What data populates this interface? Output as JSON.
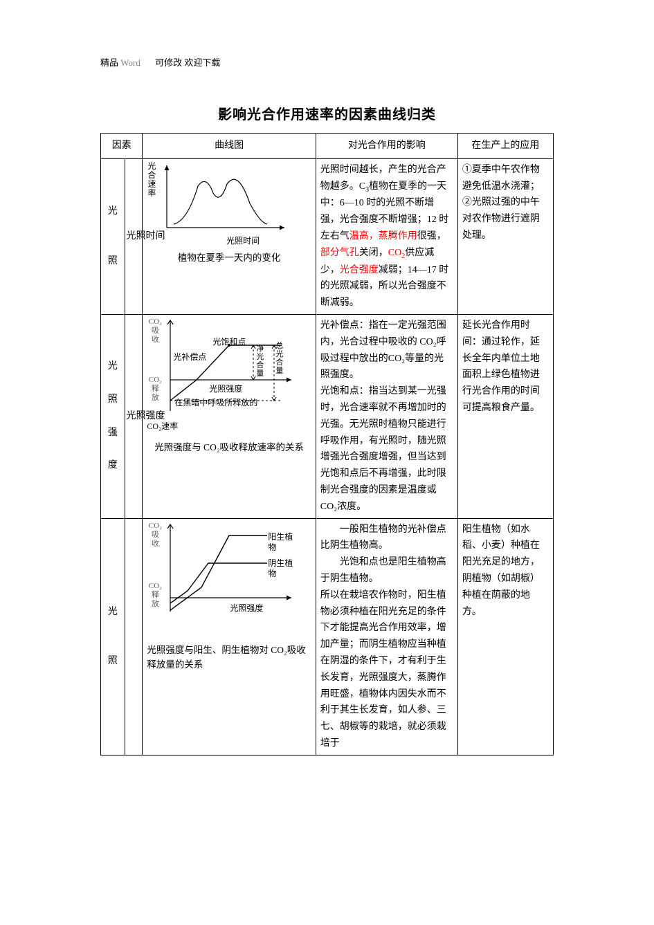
{
  "header": {
    "jingpin": "精品",
    "word": "Word",
    "rest": "可修改  欢迎下载"
  },
  "title": "影响光合作用速率的因素曲线归类",
  "columns": {
    "c1": "因素",
    "c2": "曲线图",
    "c3": "对光合作用的影响",
    "c4": "在生产上的应用"
  },
  "rows": [
    {
      "factor_main": "光\n\n\n照",
      "factor_sub": "光照时间",
      "chart": {
        "type": "line-peak",
        "y_label": "光合速率",
        "x_label": "光照时间",
        "caption": "植物在夏季一天内的变化",
        "stroke": "#000000",
        "points": [
          [
            20,
            80
          ],
          [
            35,
            55
          ],
          [
            55,
            20
          ],
          [
            70,
            35
          ],
          [
            85,
            25
          ],
          [
            100,
            50
          ],
          [
            120,
            80
          ]
        ],
        "axis_color": "#000000"
      },
      "effect_parts": [
        {
          "t": "光照时间越长，产生的光合产物越多。C",
          "red": false
        },
        {
          "t": "3",
          "red": false,
          "sub": true
        },
        {
          "t": "植物在夏季的一天中：6—10 时的光照不断增强，光合强度不断增强；12 时左右气",
          "red": false
        },
        {
          "t": "温高，蒸腾作用",
          "red": true
        },
        {
          "t": "很强，",
          "red": false
        },
        {
          "t": "部分气孔",
          "red": true
        },
        {
          "t": "关闭，",
          "red": false
        },
        {
          "t": "CO",
          "red": true
        },
        {
          "t": "2",
          "red": true,
          "sub": true
        },
        {
          "t": "供应减少，",
          "red": false
        },
        {
          "t": "光合强度",
          "red": true
        },
        {
          "t": "减弱；14—17 时的光照减弱，所以光合强度不断减弱。",
          "red": false
        }
      ],
      "app": "①夏季中午农作物避免低温水浇灌；\n②光照过强的中午对农作物进行遮阴处理。"
    },
    {
      "factor_main": "光\n\n照\n\n强\n\n度",
      "factor_sub": "光照强度",
      "chart": {
        "type": "sat-curve",
        "y_top": "CO₂\n吸\n收",
        "y_bot": "CO₂\n释\n放",
        "sat_label": "光饱和点",
        "comp_label": "光补偿点",
        "net_label": "净光合量",
        "gross_label": "总光合量",
        "x_label": "光照强度",
        "below_label": "在黑暗中呼吸所释放的",
        "below_label2": "CO₂速率",
        "caption": "光照强度与 CO₂吸收释放速率的关系",
        "stroke": "#000000"
      },
      "effect": "光补偿点：指在一定光强范围内，光合过程中吸收的 CO₂呼吸过程中放出的CO₂等量的光照强度。\n光饱和点：指当达到某一光强时，光合速率就不再增加时的光强。无光照时植物只能进行呼吸作用，有光照时，随光照增强光合强度增强，但当达到光饱和点后不再增强，此时限制光合强度的因素是温度或CO₂浓度。",
      "app": "延长光合作用时间：通过轮作，延长全年内单位土地面积上绿色植物进行光合作用的时间可提高粮食产量。"
    },
    {
      "factor_main": "光\n\n\n照",
      "factor_sub": "",
      "chart": {
        "type": "two-lines",
        "y_top": "CO₂\n吸\n收",
        "y_bot": "CO₂\n释\n放",
        "line1_label": "阳生植物",
        "line2_label": "阴生植物",
        "x_label": "光照强度",
        "caption": "光照强度与阳生、阴生植物对 CO₂吸收释放量的关系",
        "stroke": "#000000"
      },
      "effect_indent": [
        "一般阳生植物的光补偿点比阴生植物高。",
        "光饱和点也是阳生植物高于阴生植物。"
      ],
      "effect_rest": "所以在栽培农作物时，阳生植物必须种植在阳光充足的条件下才能提高光合作用效率，增加产量；而阴生植物应当种植在阴湿的条件下，才有利于生长发育，光照强度大，蒸腾作用旺盛，植物体内因失水而不利于其生长发育，如人参、三七、胡椒等的栽培，就必须栽培于",
      "app": "阳生植物（如水稻、小麦）种植在阳光充足的地方，阴植物（如胡椒）种植在荫蔽的地方。"
    }
  ]
}
